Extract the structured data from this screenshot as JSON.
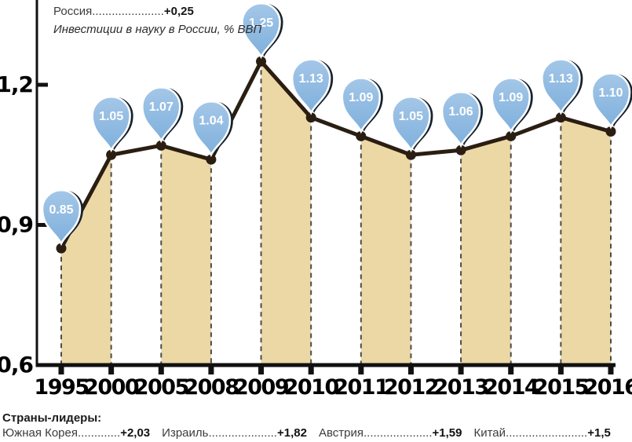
{
  "header": {
    "legend_label": "Россия",
    "legend_dots": "......................",
    "legend_value": "+0,25"
  },
  "chart_data": {
    "type": "area",
    "title": "Инвестиции в науку в России, % ВВП",
    "categories": [
      "1995",
      "2000",
      "2005",
      "2008",
      "2009",
      "2010",
      "2011",
      "2012",
      "2013",
      "2014",
      "2015",
      "2016"
    ],
    "values": [
      0.85,
      1.05,
      1.07,
      1.04,
      1.25,
      1.13,
      1.09,
      1.05,
      1.06,
      1.09,
      1.13,
      1.1
    ],
    "labels": [
      "0.85",
      "1.05",
      "1.07",
      "1.04",
      "1.25",
      "1.13",
      "1.09",
      "1.05",
      "1.06",
      "1.09",
      "1.13",
      "1.10"
    ],
    "ylabel_ticks": [
      "1,2",
      "0,9",
      "0,6"
    ],
    "ytick_values": [
      1.2,
      0.9,
      0.6
    ],
    "ylim": [
      0.6,
      1.2
    ],
    "grid": "off",
    "shaded_pairs": [
      [
        0,
        1
      ],
      [
        2,
        3
      ],
      [
        4,
        5
      ],
      [
        6,
        7
      ],
      [
        8,
        9
      ],
      [
        10,
        11
      ]
    ],
    "colors": {
      "band": "#ecd8a5",
      "line": "#2a1e12",
      "dash": "#4c4c4c",
      "pin": "#7fb0dc",
      "pin_light": "#a4c7e8",
      "pin_shadow": "#16222e",
      "axis": "#111111"
    }
  },
  "footer": {
    "title": "Страны-лидеры:",
    "items": [
      {
        "name": "Южная Корея",
        "dots": ".............",
        "value": "+2,03"
      },
      {
        "name": "Израиль",
        "dots": ".....................",
        "value": "+1,82"
      },
      {
        "name": "Австрия",
        "dots": ".....................",
        "value": "+1,59"
      },
      {
        "name": "Китай",
        "dots": ".........................",
        "value": "+1,5"
      }
    ]
  }
}
